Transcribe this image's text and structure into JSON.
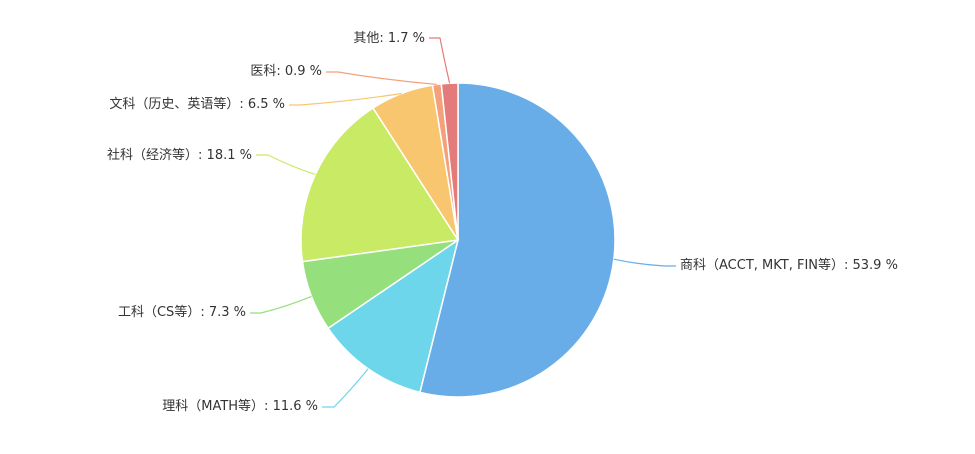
{
  "chart_data": {
    "type": "pie",
    "title": "",
    "legend": "none",
    "slices": [
      {
        "name": "商科（ACCT, MKT, FIN等）",
        "value": 53.9,
        "label": "商科（ACCT, MKT, FIN等）: 53.9 %",
        "color": "#68ade8"
      },
      {
        "name": "理科（MATH等）",
        "value": 11.6,
        "label": "理科（MATH等）: 11.6 %",
        "color": "#6dd6ea"
      },
      {
        "name": "工科（CS等）",
        "value": 7.3,
        "label": "工科（CS等）: 7.3 %",
        "color": "#95df7c"
      },
      {
        "name": "社科（经济等）",
        "value": 18.1,
        "label": "社科（经济等）: 18.1 %",
        "color": "#c9ea64"
      },
      {
        "name": "文科（历史、英语等）",
        "value": 6.5,
        "label": "文科（历史、英语等）: 6.5 %",
        "color": "#f7c66f"
      },
      {
        "name": "医科",
        "value": 0.9,
        "label": "医科: 0.9 %",
        "color": "#f4a07a"
      },
      {
        "name": "其他",
        "value": 1.7,
        "label": "其他: 1.7 %",
        "color": "#e47b7b"
      }
    ]
  }
}
